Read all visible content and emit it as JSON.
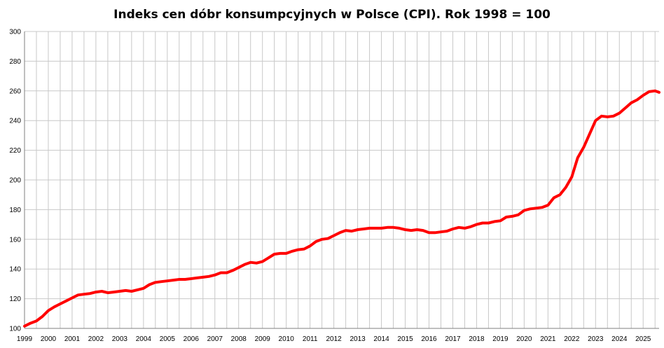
{
  "colors": {
    "line": "#ff0000",
    "grid": "#c8c8c8",
    "axis": "#7f7f7f",
    "background": "#ffffff"
  },
  "chart_data": {
    "type": "line",
    "title": "Indeks cen dóbr konsumpcyjnych w Polsce (CPI). Rok 1998 = 100",
    "xlabel": "",
    "ylabel": "",
    "ylim": [
      100,
      300
    ],
    "xlim": [
      1999.0,
      2025.67
    ],
    "grid": true,
    "legend": "none",
    "x_ticks": [
      "1999",
      "2000",
      "2001",
      "2002",
      "2003",
      "2004",
      "2005",
      "2006",
      "2007",
      "2008",
      "2009",
      "2010",
      "2011",
      "2012",
      "2013",
      "2014",
      "2015",
      "2016",
      "2017",
      "2018",
      "2019",
      "2020",
      "2021",
      "2022",
      "2023",
      "2024",
      "2025"
    ],
    "y_ticks": [
      100,
      120,
      140,
      160,
      180,
      200,
      220,
      240,
      260,
      280,
      300
    ],
    "series": [
      {
        "x": [
          1999.0,
          1999.25,
          1999.5,
          1999.75,
          2000.0,
          2000.25,
          2000.5,
          2000.75,
          2001.0,
          2001.25,
          2001.5,
          2001.75,
          2002.0,
          2002.25,
          2002.5,
          2002.75,
          2003.0,
          2003.25,
          2003.5,
          2003.75,
          2004.0,
          2004.25,
          2004.5,
          2004.75,
          2005.0,
          2005.25,
          2005.5,
          2005.75,
          2006.0,
          2006.25,
          2006.5,
          2006.75,
          2007.0,
          2007.25,
          2007.5,
          2007.75,
          2008.0,
          2008.25,
          2008.5,
          2008.75,
          2009.0,
          2009.25,
          2009.5,
          2009.75,
          2010.0,
          2010.25,
          2010.5,
          2010.75,
          2011.0,
          2011.25,
          2011.5,
          2011.75,
          2012.0,
          2012.25,
          2012.5,
          2012.75,
          2013.0,
          2013.25,
          2013.5,
          2013.75,
          2014.0,
          2014.25,
          2014.5,
          2014.75,
          2015.0,
          2015.25,
          2015.5,
          2015.75,
          2016.0,
          2016.25,
          2016.5,
          2016.75,
          2017.0,
          2017.25,
          2017.5,
          2017.75,
          2018.0,
          2018.25,
          2018.5,
          2018.75,
          2019.0,
          2019.25,
          2019.5,
          2019.75,
          2020.0,
          2020.25,
          2020.5,
          2020.75,
          2021.0,
          2021.25,
          2021.5,
          2021.75,
          2022.0,
          2022.25,
          2022.5,
          2022.75,
          2023.0,
          2023.25,
          2023.5,
          2023.75,
          2024.0,
          2024.25,
          2024.5,
          2024.75,
          2025.0,
          2025.25,
          2025.5,
          2025.67
        ],
        "values": [
          101.5,
          103.5,
          105.0,
          108.0,
          112.0,
          114.5,
          116.5,
          118.5,
          120.5,
          122.5,
          123.0,
          123.5,
          124.5,
          125.0,
          124.0,
          124.5,
          125.0,
          125.5,
          125.0,
          126.0,
          127.0,
          129.5,
          131.0,
          131.5,
          132.0,
          132.5,
          133.0,
          133.0,
          133.5,
          134.0,
          134.5,
          135.0,
          136.0,
          137.5,
          137.5,
          139.0,
          141.0,
          143.0,
          144.5,
          144.0,
          145.0,
          147.5,
          150.0,
          150.5,
          150.5,
          152.0,
          153.0,
          153.5,
          155.5,
          158.5,
          160.0,
          160.5,
          162.5,
          164.5,
          166.0,
          165.5,
          166.5,
          167.0,
          167.5,
          167.5,
          167.5,
          168.0,
          168.0,
          167.5,
          166.5,
          166.0,
          166.5,
          166.0,
          164.5,
          164.5,
          165.0,
          165.5,
          167.0,
          168.0,
          167.5,
          168.5,
          170.0,
          171.0,
          171.0,
          172.0,
          172.5,
          175.0,
          175.5,
          176.5,
          179.5,
          180.5,
          181.0,
          181.5,
          183.0,
          188.0,
          190.0,
          195.0,
          202.0,
          215.0,
          222.0,
          231.0,
          240.0,
          243.0,
          242.5,
          243.0,
          245.0,
          248.5,
          252.0,
          254.0,
          257.0,
          259.5,
          260.0,
          259.0
        ]
      }
    ]
  }
}
